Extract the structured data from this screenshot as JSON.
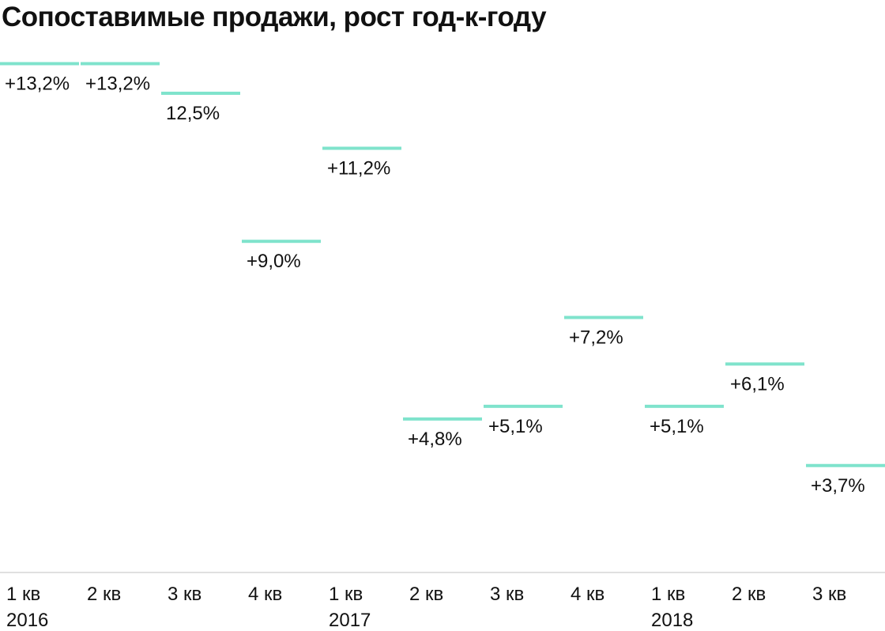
{
  "chart_data": {
    "type": "bar",
    "title": "Сопоставимые продажи, рост год-к-году",
    "categories": [
      [
        "1 кв",
        "2016"
      ],
      [
        "2 кв"
      ],
      [
        "3 кв"
      ],
      [
        "4 кв"
      ],
      [
        "1 кв",
        "2017"
      ],
      [
        "2 кв"
      ],
      [
        "3 кв"
      ],
      [
        "4 кв"
      ],
      [
        "1 кв",
        "2018"
      ],
      [
        "2 кв"
      ],
      [
        "3 кв"
      ]
    ],
    "values": [
      13.2,
      13.2,
      12.5,
      9.0,
      11.2,
      4.8,
      5.1,
      7.2,
      5.1,
      6.1,
      3.7
    ],
    "value_labels": [
      "+13,2%",
      "+13,2%",
      "12,5%",
      "+9,0%",
      "+11,2%",
      "+4,8%",
      "+5,1%",
      "+7,2%",
      "+5,1%",
      "+6,1%",
      "+3,7%"
    ],
    "xlabel": "",
    "ylabel": "",
    "ylim": [
      0,
      13.5
    ],
    "grid": false,
    "colors": {
      "mark": "#7fe3cc",
      "axis": "#d6d6d6",
      "text": "#111111"
    }
  }
}
